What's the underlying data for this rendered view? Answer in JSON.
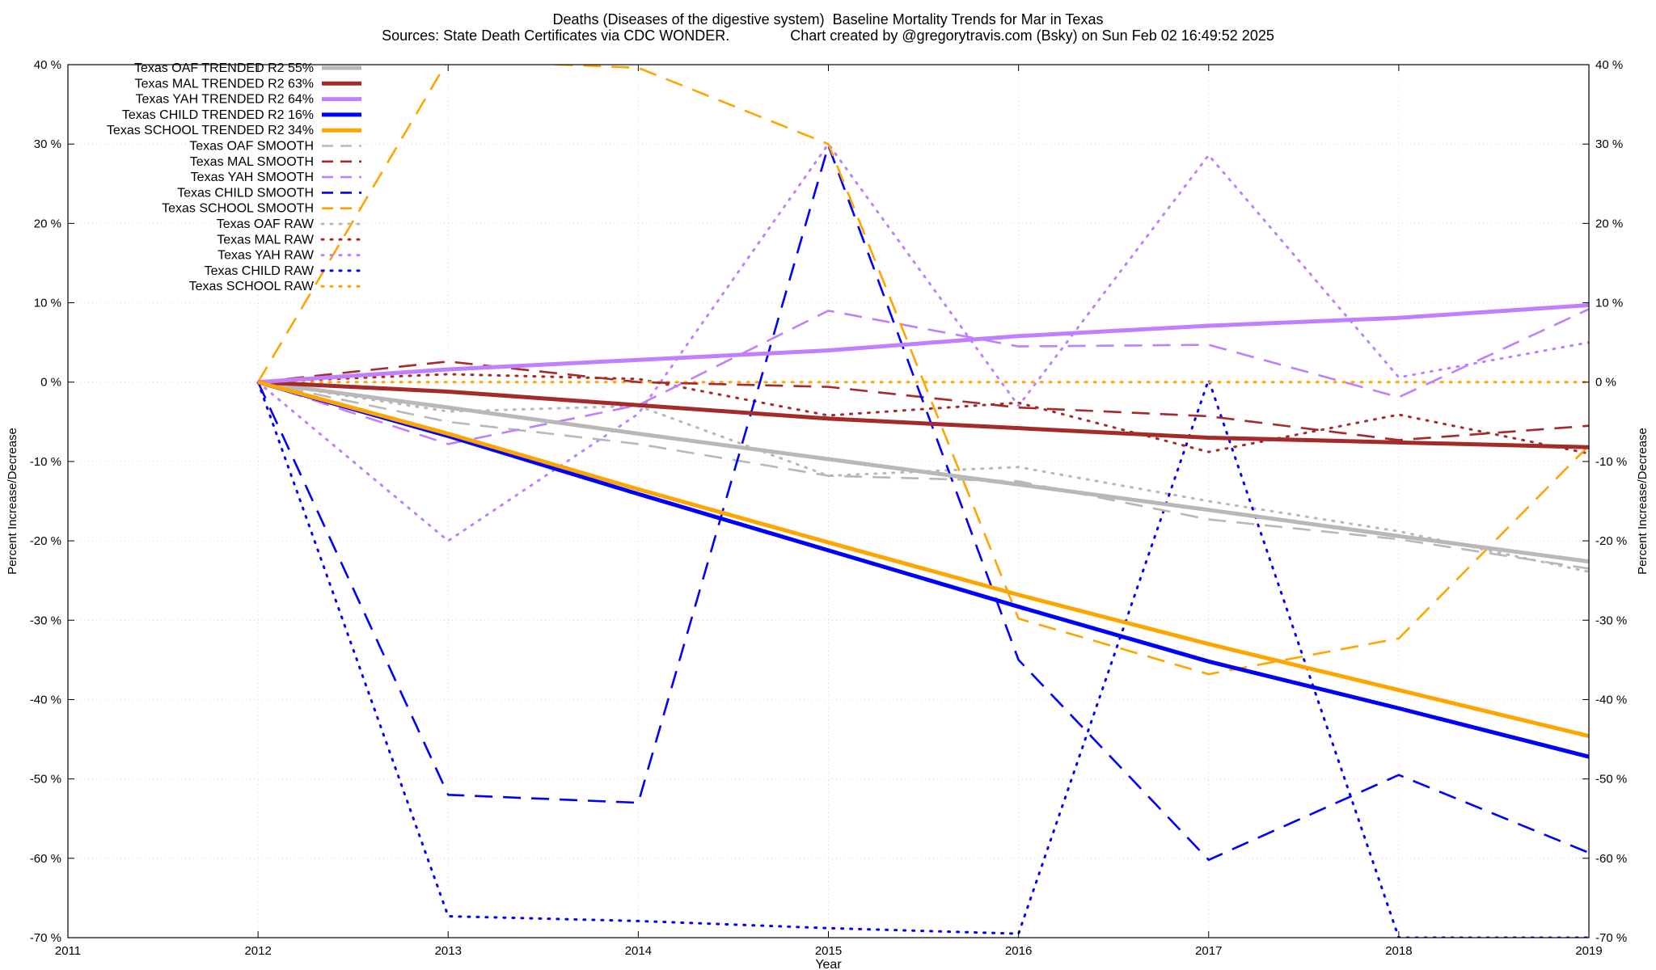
{
  "chart_data": {
    "type": "line",
    "title": "Deaths (Diseases of the digestive system)  Baseline Mortality Trends for Mar in Texas",
    "subtitle": "Sources: State Death Certificates via CDC WONDER.               Chart created by @gregorytravis.com (Bsky) on Sun Feb 02 16:49:52 2025",
    "xlabel": "Year",
    "ylabel": "Percent Increase/Decrease",
    "xlim": [
      2011,
      2019
    ],
    "ylim": [
      -70,
      40
    ],
    "x_ticks": [
      "2011",
      "2012",
      "2013",
      "2014",
      "2015",
      "2016",
      "2017",
      "2018",
      "2019"
    ],
    "y_ticks": [
      "40 %",
      "30 %",
      "20 %",
      "10 %",
      "0 %",
      "-10 %",
      "-20 %",
      "-30 %",
      "-40 %",
      "-50 %",
      "-60 %",
      "-70 %"
    ],
    "grid": true,
    "legend_position": "top-left",
    "x": [
      2012,
      2013,
      2014,
      2015,
      2016,
      2017,
      2018,
      2019
    ],
    "series": [
      {
        "name": "Texas OAF TRENDED R2  55%",
        "color": "#b8b8b8",
        "style": "solid",
        "values": [
          0,
          -3.2,
          -6.5,
          -9.7,
          -12.9,
          -16.1,
          -19.4,
          -22.6
        ]
      },
      {
        "name": "Texas MAL TRENDED R2  63%",
        "color": "#a52a2a",
        "style": "solid",
        "values": [
          0,
          -1.2,
          -2.9,
          -4.6,
          -5.8,
          -7.0,
          -7.6,
          -8.2
        ]
      },
      {
        "name": "Texas YAH TRENDED R2  64%",
        "color": "#bf7fff",
        "style": "solid",
        "values": [
          0,
          1.6,
          2.8,
          4.0,
          5.8,
          7.1,
          8.1,
          9.7
        ]
      },
      {
        "name": "Texas CHILD TRENDED R2  16%",
        "color": "#0000ff",
        "style": "solid",
        "values": [
          0,
          -6.8,
          -14.1,
          -21.2,
          -28.3,
          -35.2,
          -41.1,
          -47.2
        ]
      },
      {
        "name": "Texas SCHOOL TRENDED R2  34%",
        "color": "#ffa500",
        "style": "solid",
        "values": [
          0,
          -6.5,
          -13.5,
          -20.2,
          -26.8,
          -33.0,
          -38.8,
          -44.6
        ]
      },
      {
        "name": "Texas OAF SMOOTH",
        "color": "#b8b8b8",
        "style": "dashed",
        "values": [
          0,
          -5.0,
          -7.8,
          -11.8,
          -12.5,
          -17.3,
          -19.8,
          -23.5
        ]
      },
      {
        "name": "Texas MAL SMOOTH",
        "color": "#a52a2a",
        "style": "dashed",
        "values": [
          0,
          2.6,
          0.0,
          -0.6,
          -3.2,
          -4.3,
          -7.3,
          -5.5
        ]
      },
      {
        "name": "Texas YAH SMOOTH",
        "color": "#bf7fff",
        "style": "dashed",
        "values": [
          0,
          -7.8,
          -2.9,
          9.0,
          4.5,
          4.7,
          -1.9,
          9.2
        ]
      },
      {
        "name": "Texas CHILD SMOOTH",
        "color": "#0000ff",
        "style": "dashed",
        "values": [
          0,
          -52.0,
          -53.0,
          29.8,
          -35.0,
          -60.2,
          -49.5,
          -59.3
        ]
      },
      {
        "name": "Texas SCHOOL SMOOTH",
        "color": "#ffa500",
        "style": "dashed",
        "values": [
          0,
          40.6,
          39.6,
          30.0,
          -29.8,
          -36.8,
          -32.3,
          -8.0
        ]
      },
      {
        "name": "Texas OAF RAW",
        "color": "#b8b8b8",
        "style": "dotted",
        "values": [
          0,
          -3.7,
          -3.0,
          -11.8,
          -10.7,
          -15.0,
          -18.8,
          -23.9
        ]
      },
      {
        "name": "Texas MAL RAW",
        "color": "#a52a2a",
        "style": "dotted",
        "values": [
          0,
          1.0,
          0.4,
          -4.2,
          -2.6,
          -8.8,
          -4.1,
          -9.0
        ]
      },
      {
        "name": "Texas YAH RAW",
        "color": "#bf7fff",
        "style": "dotted",
        "values": [
          0,
          -20.0,
          -4.0,
          30.0,
          -3.0,
          28.6,
          0.6,
          5.0
        ]
      },
      {
        "name": "Texas CHILD RAW",
        "color": "#0000ff",
        "style": "dotted",
        "values": [
          0,
          -67.3,
          -67.9,
          -68.8,
          -69.5,
          0.3,
          -70.0,
          -70.0
        ]
      },
      {
        "name": "Texas SCHOOL RAW",
        "color": "#ffa500",
        "style": "dotted",
        "values": [
          0,
          0,
          0,
          0,
          0,
          0,
          0,
          0
        ]
      }
    ]
  }
}
